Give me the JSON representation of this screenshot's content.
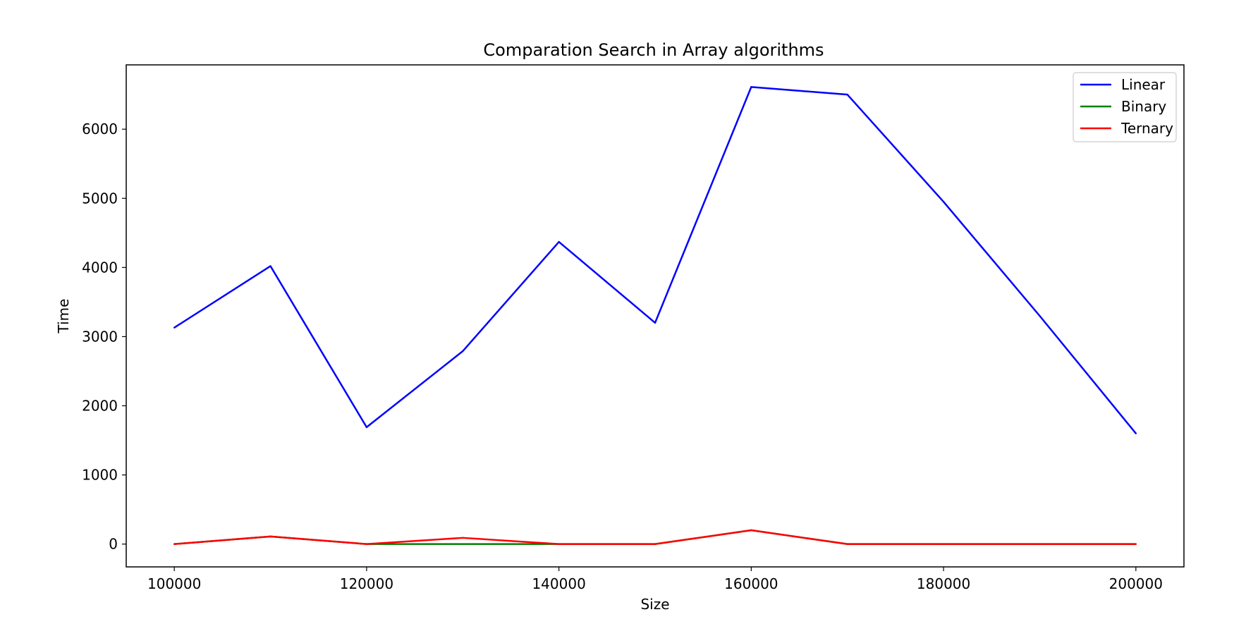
{
  "chart_data": {
    "type": "line",
    "title": "Comparation Search in Array algorithms",
    "xlabel": "Size",
    "ylabel": "Time",
    "x": [
      100000,
      110000,
      120000,
      130000,
      140000,
      150000,
      160000,
      170000,
      180000,
      190000,
      200000
    ],
    "xlim": [
      95000,
      205000
    ],
    "ylim": [
      -330,
      6930
    ],
    "xticks": [
      100000,
      120000,
      140000,
      160000,
      180000,
      200000
    ],
    "yticks": [
      0,
      1000,
      2000,
      3000,
      4000,
      5000,
      6000
    ],
    "grid": false,
    "legend_position": "top-right",
    "series": [
      {
        "name": "Linear",
        "color": "#0000ff",
        "values": [
          3130,
          4020,
          1690,
          2790,
          4370,
          3200,
          6610,
          6500,
          4950,
          3300,
          1600
        ]
      },
      {
        "name": "Binary",
        "color": "#008000",
        "values": [
          0,
          110,
          0,
          0,
          0,
          0,
          200,
          0,
          0,
          0,
          0
        ]
      },
      {
        "name": "Ternary",
        "color": "#ff0000",
        "values": [
          0,
          110,
          0,
          90,
          0,
          0,
          200,
          0,
          0,
          0,
          0
        ]
      }
    ]
  }
}
